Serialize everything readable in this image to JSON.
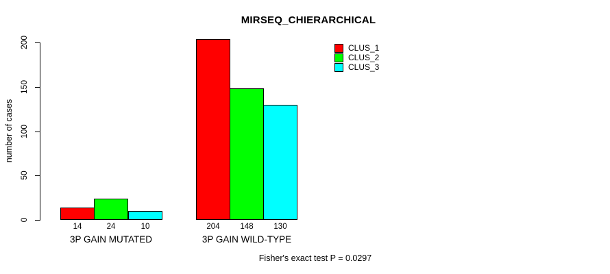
{
  "title": "MIRSEQ_CHIERARCHICAL",
  "footer": "Fisher's exact test P = 0.0297",
  "chart_data": {
    "type": "bar",
    "title": "MIRSEQ_CHIERARCHICAL",
    "categories": [
      "3P GAIN MUTATED",
      "3P GAIN WILD-TYPE"
    ],
    "series": [
      {
        "name": "CLUS_1",
        "color": "#ff0000",
        "values": [
          14,
          204
        ]
      },
      {
        "name": "CLUS_2",
        "color": "#00ff00",
        "values": [
          24,
          148
        ]
      },
      {
        "name": "CLUS_3",
        "color": "#00ffff",
        "values": [
          10,
          130
        ]
      }
    ],
    "xlabel": "",
    "ylabel": "number of cases",
    "yticks": [
      0,
      50,
      100,
      150,
      200
    ],
    "ylim": [
      0,
      200
    ],
    "grid": false,
    "legend_position": "top-right",
    "bar_value_labels_shown": true,
    "annotation": "Fisher's exact test P = 0.0297"
  }
}
